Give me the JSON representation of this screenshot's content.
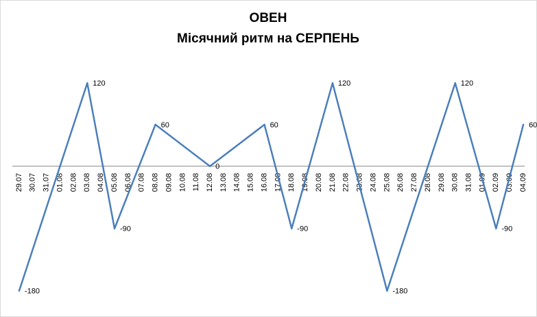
{
  "chart_data": {
    "type": "line",
    "title": "ОВЕН",
    "subtitle": "Місячний ритм на СЕРПЕНЬ",
    "categories": [
      "29.07",
      "30.07",
      "31.07",
      "01.08",
      "02.08",
      "03.08",
      "04.08",
      "05.08",
      "06.08",
      "07.08",
      "08.08",
      "09.08",
      "10.08",
      "11.08",
      "12.08",
      "13.08",
      "14.08",
      "15.08",
      "16.08",
      "17.08",
      "18.08",
      "19.08",
      "20.08",
      "21.08",
      "22.08",
      "23.08",
      "24.08",
      "25.08",
      "26.08",
      "27.08",
      "28.08",
      "29.08",
      "30.08",
      "31.08",
      "01.09",
      "02.09",
      "03.09",
      "04.09"
    ],
    "series": [
      {
        "color": "#4a7ebb",
        "values": [
          -180,
          null,
          null,
          null,
          null,
          120,
          null,
          -90,
          null,
          null,
          60,
          null,
          null,
          null,
          0,
          null,
          null,
          null,
          60,
          null,
          -90,
          null,
          null,
          120,
          null,
          null,
          null,
          -180,
          null,
          null,
          null,
          null,
          120,
          null,
          null,
          -90,
          null,
          60
        ]
      }
    ],
    "connect_gaps": true,
    "data_labels": true,
    "ylim": [
      -200,
      150
    ]
  }
}
